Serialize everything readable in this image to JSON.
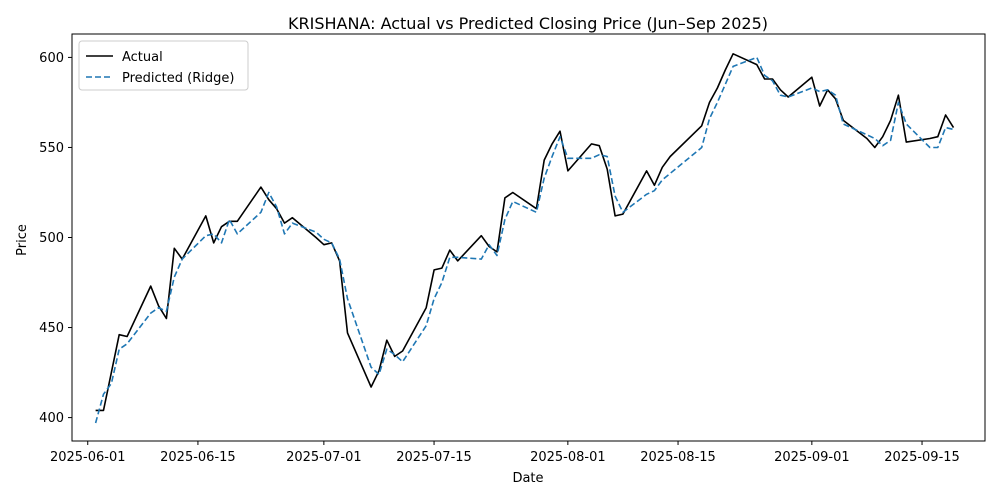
{
  "chart_data": {
    "type": "line",
    "title": "KRISHANA: Actual vs Predicted Closing Price (Jun–Sep 2025)",
    "xlabel": "Date",
    "ylabel": "Price",
    "xlim": [
      "2025-05-30",
      "2025-09-23"
    ],
    "ylim": [
      387,
      613
    ],
    "x_ticks": [
      "2025-06-01",
      "2025-06-15",
      "2025-07-01",
      "2025-07-15",
      "2025-08-01",
      "2025-08-15",
      "2025-09-01",
      "2025-09-15"
    ],
    "y_ticks": [
      400,
      450,
      500,
      550,
      600
    ],
    "grid": false,
    "legend_position": "top-left",
    "series": [
      {
        "name": "Actual",
        "color": "#000000",
        "style": "solid",
        "points": [
          [
            "2025-06-02",
            404
          ],
          [
            "2025-06-03",
            404
          ],
          [
            "2025-06-05",
            446
          ],
          [
            "2025-06-06",
            445
          ],
          [
            "2025-06-09",
            473
          ],
          [
            "2025-06-10",
            462
          ],
          [
            "2025-06-11",
            455
          ],
          [
            "2025-06-12",
            494
          ],
          [
            "2025-06-13",
            488
          ],
          [
            "2025-06-16",
            512
          ],
          [
            "2025-06-17",
            497
          ],
          [
            "2025-06-18",
            506
          ],
          [
            "2025-06-19",
            509
          ],
          [
            "2025-06-20",
            509
          ],
          [
            "2025-06-23",
            528
          ],
          [
            "2025-06-24",
            521
          ],
          [
            "2025-06-25",
            516
          ],
          [
            "2025-06-26",
            508
          ],
          [
            "2025-06-27",
            511
          ],
          [
            "2025-06-30",
            500
          ],
          [
            "2025-07-01",
            496
          ],
          [
            "2025-07-02",
            497
          ],
          [
            "2025-07-03",
            487
          ],
          [
            "2025-07-04",
            447
          ],
          [
            "2025-07-07",
            417
          ],
          [
            "2025-07-08",
            426
          ],
          [
            "2025-07-09",
            443
          ],
          [
            "2025-07-10",
            434
          ],
          [
            "2025-07-11",
            437
          ],
          [
            "2025-07-14",
            461
          ],
          [
            "2025-07-15",
            482
          ],
          [
            "2025-07-16",
            483
          ],
          [
            "2025-07-17",
            493
          ],
          [
            "2025-07-18",
            487
          ],
          [
            "2025-07-21",
            501
          ],
          [
            "2025-07-22",
            495
          ],
          [
            "2025-07-23",
            492
          ],
          [
            "2025-07-24",
            522
          ],
          [
            "2025-07-25",
            525
          ],
          [
            "2025-07-28",
            516
          ],
          [
            "2025-07-29",
            543
          ],
          [
            "2025-07-30",
            552
          ],
          [
            "2025-07-31",
            559
          ],
          [
            "2025-08-01",
            537
          ],
          [
            "2025-08-04",
            552
          ],
          [
            "2025-08-05",
            551
          ],
          [
            "2025-08-06",
            538
          ],
          [
            "2025-08-07",
            512
          ],
          [
            "2025-08-08",
            513
          ],
          [
            "2025-08-11",
            537
          ],
          [
            "2025-08-12",
            529
          ],
          [
            "2025-08-13",
            539
          ],
          [
            "2025-08-14",
            545
          ],
          [
            "2025-08-18",
            562
          ],
          [
            "2025-08-19",
            575
          ],
          [
            "2025-08-20",
            583
          ],
          [
            "2025-08-21",
            593
          ],
          [
            "2025-08-22",
            602
          ],
          [
            "2025-08-25",
            596
          ],
          [
            "2025-08-26",
            588
          ],
          [
            "2025-08-27",
            588
          ],
          [
            "2025-08-28",
            582
          ],
          [
            "2025-08-29",
            578
          ],
          [
            "2025-09-01",
            589
          ],
          [
            "2025-09-02",
            573
          ],
          [
            "2025-09-03",
            582
          ],
          [
            "2025-09-04",
            577
          ],
          [
            "2025-09-05",
            565
          ],
          [
            "2025-09-08",
            555
          ],
          [
            "2025-09-09",
            550
          ],
          [
            "2025-09-10",
            556
          ],
          [
            "2025-09-11",
            565
          ],
          [
            "2025-09-12",
            579
          ],
          [
            "2025-09-13",
            553
          ],
          [
            "2025-09-16",
            555
          ],
          [
            "2025-09-17",
            556
          ],
          [
            "2025-09-18",
            568
          ],
          [
            "2025-09-19",
            561
          ]
        ]
      },
      {
        "name": "Predicted (Ridge)",
        "color": "#1f77b4",
        "style": "dashed",
        "points": [
          [
            "2025-06-02",
            397
          ],
          [
            "2025-06-03",
            413
          ],
          [
            "2025-06-04",
            419
          ],
          [
            "2025-06-05",
            438
          ],
          [
            "2025-06-06",
            441
          ],
          [
            "2025-06-09",
            458
          ],
          [
            "2025-06-10",
            461
          ],
          [
            "2025-06-11",
            459
          ],
          [
            "2025-06-12",
            478
          ],
          [
            "2025-06-13",
            488
          ],
          [
            "2025-06-16",
            501
          ],
          [
            "2025-06-17",
            502
          ],
          [
            "2025-06-18",
            497
          ],
          [
            "2025-06-19",
            510
          ],
          [
            "2025-06-20",
            502
          ],
          [
            "2025-06-23",
            514
          ],
          [
            "2025-06-24",
            525
          ],
          [
            "2025-06-25",
            517
          ],
          [
            "2025-06-26",
            502
          ],
          [
            "2025-06-27",
            508
          ],
          [
            "2025-06-30",
            503
          ],
          [
            "2025-07-01",
            499
          ],
          [
            "2025-07-02",
            497
          ],
          [
            "2025-07-03",
            488
          ],
          [
            "2025-07-04",
            466
          ],
          [
            "2025-07-07",
            428
          ],
          [
            "2025-07-08",
            424
          ],
          [
            "2025-07-09",
            438
          ],
          [
            "2025-07-10",
            435
          ],
          [
            "2025-07-11",
            431
          ],
          [
            "2025-07-14",
            451
          ],
          [
            "2025-07-15",
            466
          ],
          [
            "2025-07-16",
            475
          ],
          [
            "2025-07-17",
            489
          ],
          [
            "2025-07-18",
            489
          ],
          [
            "2025-07-21",
            488
          ],
          [
            "2025-07-22",
            496
          ],
          [
            "2025-07-23",
            490
          ],
          [
            "2025-07-24",
            510
          ],
          [
            "2025-07-25",
            520
          ],
          [
            "2025-07-28",
            514
          ],
          [
            "2025-07-29",
            533
          ],
          [
            "2025-07-30",
            545
          ],
          [
            "2025-07-31",
            556
          ],
          [
            "2025-08-01",
            544
          ],
          [
            "2025-08-04",
            544
          ],
          [
            "2025-08-05",
            546
          ],
          [
            "2025-08-06",
            545
          ],
          [
            "2025-08-07",
            523
          ],
          [
            "2025-08-08",
            514
          ],
          [
            "2025-08-11",
            524
          ],
          [
            "2025-08-12",
            526
          ],
          [
            "2025-08-13",
            532
          ],
          [
            "2025-08-18",
            550
          ],
          [
            "2025-08-19",
            566
          ],
          [
            "2025-08-20",
            575
          ],
          [
            "2025-08-21",
            585
          ],
          [
            "2025-08-22",
            595
          ],
          [
            "2025-08-25",
            600
          ],
          [
            "2025-08-26",
            590
          ],
          [
            "2025-08-27",
            587
          ],
          [
            "2025-08-28",
            579
          ],
          [
            "2025-08-29",
            578
          ],
          [
            "2025-09-01",
            583
          ],
          [
            "2025-09-02",
            581
          ],
          [
            "2025-09-03",
            582
          ],
          [
            "2025-09-04",
            579
          ],
          [
            "2025-09-05",
            563
          ],
          [
            "2025-09-08",
            557
          ],
          [
            "2025-09-09",
            555
          ],
          [
            "2025-09-10",
            551
          ],
          [
            "2025-09-11",
            554
          ],
          [
            "2025-09-12",
            575
          ],
          [
            "2025-09-13",
            563
          ],
          [
            "2025-09-16",
            550
          ],
          [
            "2025-09-17",
            550
          ],
          [
            "2025-09-18",
            561
          ],
          [
            "2025-09-19",
            560
          ]
        ]
      }
    ]
  }
}
